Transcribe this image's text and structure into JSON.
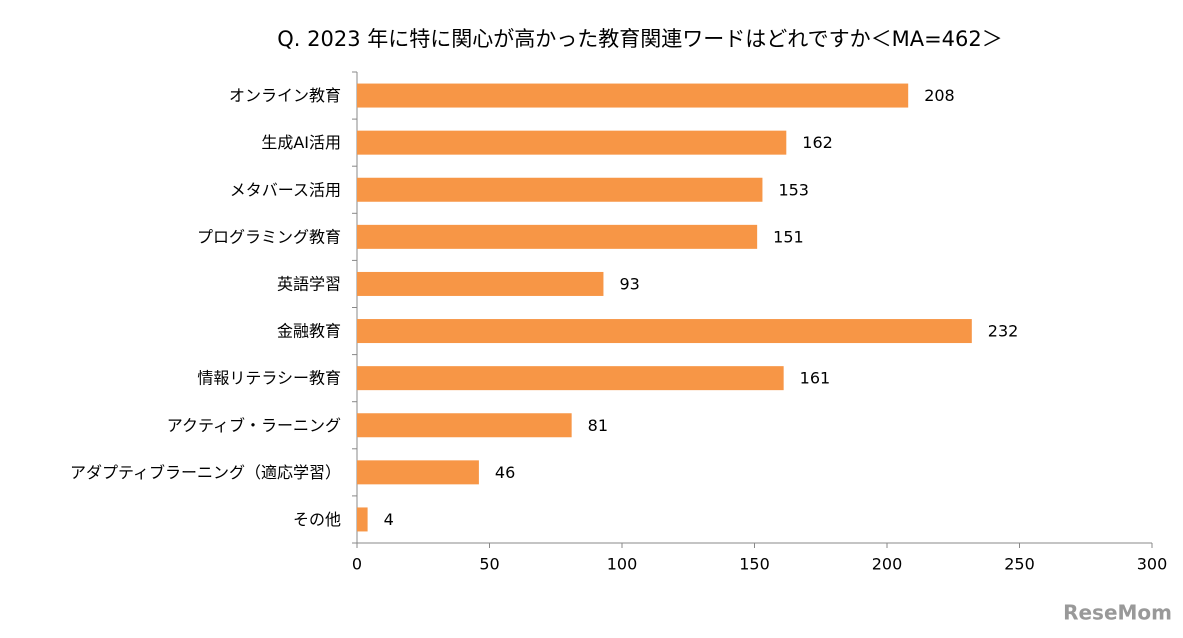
{
  "chart_data": {
    "type": "bar",
    "orientation": "horizontal",
    "title": "Q. 2023 年に特に関心が高かった教育関連ワードはどれですか＜MA=462＞",
    "categories": [
      "オンライン教育",
      "生成AI活用",
      "メタバース活用",
      "プログラミング教育",
      "英語学習",
      "金融教育",
      "情報リテラシー教育",
      "アクティブ・ラーニング",
      "アダプティブラーニング（適応学習）",
      "その他"
    ],
    "values": [
      208,
      162,
      153,
      151,
      93,
      232,
      161,
      81,
      46,
      4
    ],
    "color": "#f79646",
    "xlim": [
      0,
      300
    ],
    "xticks": [
      0,
      50,
      100,
      150,
      200,
      250,
      300
    ],
    "grid": false,
    "watermark": "ReseMom"
  }
}
